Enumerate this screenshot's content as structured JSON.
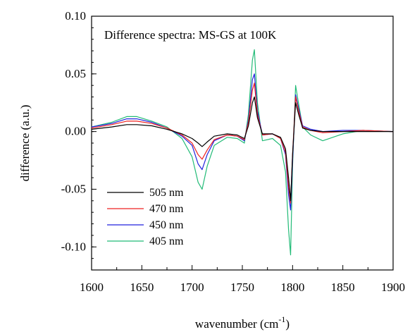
{
  "chart_data": {
    "type": "line",
    "title": "Difference spectra: MS-GS at 100K",
    "xlabel": "wavenumber (cm",
    "xlabel_superscript": "-1",
    "xlabel_suffix": ")",
    "ylabel": "difference (a.u.)",
    "xlim": [
      1600,
      1900
    ],
    "ylim": [
      -0.12,
      0.1
    ],
    "x_ticks": [
      1600,
      1650,
      1700,
      1750,
      1800,
      1850,
      1900
    ],
    "x_tick_labels": [
      "1600",
      "1650",
      "1700",
      "1750",
      "1800",
      "1850",
      "1900"
    ],
    "y_ticks": [
      0.1,
      0.05,
      0.0,
      -0.05,
      -0.1
    ],
    "y_tick_labels": [
      "0.10",
      "0.05",
      "0.00",
      "-0.05",
      "-0.10"
    ],
    "grid": false,
    "legend_position": "bottom-left",
    "series": [
      {
        "name": "505 nm",
        "color": "#000000",
        "x": [
          1600,
          1620,
          1635,
          1645,
          1660,
          1675,
          1690,
          1700,
          1706,
          1710,
          1715,
          1722,
          1735,
          1745,
          1752,
          1756,
          1760,
          1762,
          1765,
          1770,
          1780,
          1788,
          1793,
          1796,
          1798,
          1800,
          1803,
          1806,
          1810,
          1818,
          1830,
          1850,
          1870,
          1900
        ],
        "y": [
          0.002,
          0.004,
          0.006,
          0.006,
          0.005,
          0.002,
          -0.002,
          -0.006,
          -0.01,
          -0.013,
          -0.009,
          -0.004,
          -0.002,
          -0.003,
          -0.006,
          0.005,
          0.025,
          0.03,
          0.012,
          -0.002,
          -0.002,
          -0.005,
          -0.015,
          -0.04,
          -0.06,
          -0.02,
          0.025,
          0.015,
          0.003,
          0.001,
          0.0,
          0.0,
          0.0,
          0.0
        ]
      },
      {
        "name": "470 nm",
        "color": "#ee2222",
        "x": [
          1600,
          1620,
          1635,
          1645,
          1660,
          1675,
          1690,
          1700,
          1706,
          1710,
          1715,
          1722,
          1735,
          1745,
          1752,
          1756,
          1760,
          1762,
          1765,
          1770,
          1780,
          1788,
          1793,
          1796,
          1798,
          1800,
          1803,
          1806,
          1810,
          1818,
          1830,
          1850,
          1870,
          1900
        ],
        "y": [
          0.003,
          0.006,
          0.009,
          0.009,
          0.007,
          0.003,
          -0.003,
          -0.01,
          -0.02,
          -0.024,
          -0.016,
          -0.007,
          -0.003,
          -0.004,
          -0.007,
          0.008,
          0.036,
          0.042,
          0.015,
          -0.003,
          -0.002,
          -0.006,
          -0.018,
          -0.048,
          -0.062,
          -0.02,
          0.03,
          0.018,
          0.004,
          0.001,
          -0.001,
          0.0,
          0.001,
          0.0
        ]
      },
      {
        "name": "450 nm",
        "color": "#2222dd",
        "x": [
          1600,
          1620,
          1635,
          1645,
          1660,
          1675,
          1690,
          1700,
          1706,
          1710,
          1715,
          1722,
          1735,
          1745,
          1752,
          1756,
          1760,
          1762,
          1765,
          1770,
          1780,
          1788,
          1793,
          1796,
          1798,
          1800,
          1803,
          1806,
          1810,
          1818,
          1830,
          1850,
          1870,
          1900
        ],
        "y": [
          0.004,
          0.007,
          0.011,
          0.011,
          0.008,
          0.003,
          -0.004,
          -0.012,
          -0.028,
          -0.033,
          -0.02,
          -0.008,
          -0.003,
          -0.004,
          -0.008,
          0.01,
          0.045,
          0.05,
          0.018,
          -0.003,
          -0.002,
          -0.006,
          -0.02,
          -0.055,
          -0.068,
          -0.025,
          0.032,
          0.02,
          0.005,
          0.002,
          0.0,
          0.001,
          0.001,
          0.0
        ]
      },
      {
        "name": "405 nm",
        "color": "#22bb77",
        "x": [
          1600,
          1620,
          1635,
          1645,
          1660,
          1675,
          1690,
          1700,
          1706,
          1710,
          1715,
          1722,
          1735,
          1745,
          1752,
          1756,
          1760,
          1762,
          1765,
          1770,
          1780,
          1788,
          1793,
          1796,
          1798,
          1800,
          1803,
          1806,
          1810,
          1818,
          1830,
          1850,
          1870,
          1900
        ],
        "y": [
          0.004,
          0.008,
          0.013,
          0.013,
          0.009,
          0.004,
          -0.006,
          -0.022,
          -0.044,
          -0.05,
          -0.03,
          -0.012,
          -0.005,
          -0.006,
          -0.01,
          0.015,
          0.062,
          0.071,
          0.025,
          -0.008,
          -0.006,
          -0.012,
          -0.035,
          -0.085,
          -0.107,
          -0.03,
          0.04,
          0.024,
          0.004,
          -0.003,
          -0.008,
          -0.002,
          0.001,
          0.0
        ]
      }
    ]
  }
}
